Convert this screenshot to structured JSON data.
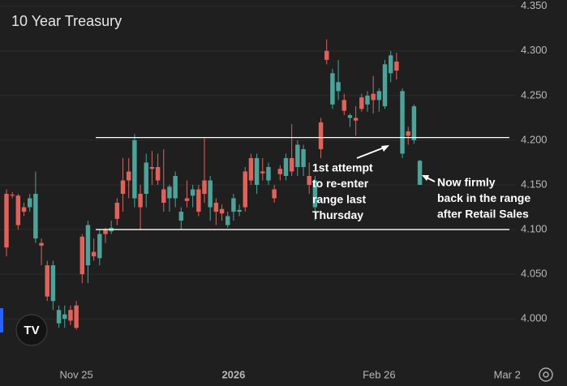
{
  "chart_data": {
    "type": "candlestick",
    "title": "10 Year Treasury",
    "categories": [
      null,
      null,
      null,
      null,
      null,
      null,
      null,
      null,
      null,
      null,
      null,
      null,
      "Nov 25",
      null,
      null,
      null,
      null,
      null,
      null,
      null,
      null,
      null,
      null,
      null,
      null,
      null,
      null,
      null,
      null,
      null,
      null,
      null,
      null,
      null,
      null,
      null,
      null,
      null,
      null,
      "2026",
      null,
      null,
      null,
      null,
      null,
      null,
      null,
      null,
      null,
      null,
      null,
      null,
      null,
      null,
      null,
      null,
      null,
      null,
      null,
      null,
      null,
      null,
      null,
      null,
      "Feb 26",
      null,
      null,
      null,
      null,
      null,
      null,
      null,
      null,
      null,
      null,
      null,
      null,
      null,
      null,
      null,
      null,
      null,
      null,
      null,
      null,
      null,
      "Mar 2",
      null
    ],
    "open": [
      4.14,
      4.139,
      4.138,
      4.125,
      4.125,
      4.09,
      4.085,
      4.06,
      4.02,
      3.995,
      4.0,
      4.01,
      4.015,
      4.092,
      4.06,
      4.075,
      4.068,
      4.1,
      4.098,
      4.13,
      4.155,
      4.165,
      4.135,
      4.14,
      4.14,
      4.17,
      4.17,
      4.145,
      4.135,
      4.135,
      4.11,
      4.135,
      4.138,
      4.145,
      4.155,
      4.125,
      4.13,
      4.123,
      4.105,
      4.12,
      4.12,
      4.165,
      4.18,
      4.15,
      4.165,
      4.155,
      4.145,
      4.168,
      4.16,
      4.18,
      4.17,
      4.17,
      4.16,
      4.125,
      4.22,
      4.3,
      4.24,
      4.255,
      4.245,
      4.225,
      4.225,
      4.248,
      4.24,
      4.252,
      4.245,
      4.238,
      4.275,
      4.288,
      4.185,
      4.21,
      4.2,
      4.15,
      null,
      null,
      null,
      null,
      null,
      null,
      null,
      null,
      null,
      null,
      null,
      null,
      null,
      null,
      null,
      null
    ],
    "high": [
      4.145,
      4.142,
      4.14,
      4.13,
      4.14,
      4.165,
      4.09,
      4.065,
      4.065,
      4.015,
      4.015,
      4.015,
      4.02,
      4.095,
      4.11,
      4.09,
      4.1,
      4.102,
      4.11,
      4.135,
      4.18,
      4.18,
      4.207,
      4.15,
      4.185,
      4.188,
      4.185,
      4.19,
      4.15,
      4.165,
      4.125,
      4.155,
      4.15,
      4.15,
      4.202,
      4.16,
      4.135,
      4.128,
      4.12,
      4.14,
      4.128,
      4.17,
      4.185,
      4.185,
      4.18,
      4.175,
      4.15,
      4.172,
      4.185,
      4.218,
      4.2,
      4.195,
      4.175,
      4.16,
      4.225,
      4.313,
      4.28,
      4.29,
      4.252,
      4.23,
      4.238,
      4.252,
      4.255,
      4.272,
      4.258,
      4.29,
      4.3,
      4.298,
      4.258,
      4.215,
      4.24,
      4.178,
      null,
      null,
      null,
      null,
      null,
      null,
      null,
      null,
      null,
      null,
      null,
      null,
      null,
      null,
      null,
      null
    ],
    "low": [
      4.07,
      4.135,
      4.1,
      4.115,
      4.12,
      4.085,
      4.06,
      4.02,
      4.01,
      3.99,
      3.99,
      3.993,
      3.988,
      4.04,
      4.04,
      4.065,
      4.06,
      4.085,
      4.095,
      4.105,
      4.12,
      4.135,
      4.125,
      4.1,
      4.125,
      4.15,
      4.15,
      4.12,
      4.12,
      4.125,
      4.1,
      4.125,
      4.125,
      4.115,
      4.13,
      4.11,
      4.105,
      4.11,
      4.102,
      4.11,
      4.115,
      4.12,
      4.15,
      4.14,
      4.155,
      4.15,
      4.13,
      4.155,
      4.155,
      4.16,
      4.16,
      4.16,
      4.14,
      4.11,
      4.18,
      4.285,
      4.235,
      4.245,
      4.228,
      4.215,
      4.205,
      4.232,
      4.232,
      4.23,
      4.232,
      4.235,
      4.265,
      4.268,
      4.18,
      4.195,
      4.196,
      4.15,
      null,
      null,
      null,
      null,
      null,
      null,
      null,
      null,
      null,
      null,
      null,
      null,
      null,
      null,
      null,
      null
    ],
    "close": [
      4.08,
      4.138,
      4.105,
      4.12,
      4.135,
      4.14,
      4.082,
      4.025,
      4.06,
      4.01,
      4.005,
      3.998,
      3.99,
      4.05,
      4.105,
      4.07,
      4.095,
      4.095,
      4.102,
      4.112,
      4.14,
      4.155,
      4.2,
      4.125,
      4.175,
      4.168,
      4.155,
      4.13,
      4.148,
      4.16,
      4.12,
      4.132,
      4.145,
      4.12,
      4.14,
      4.155,
      4.12,
      4.118,
      4.115,
      4.135,
      4.122,
      4.125,
      4.155,
      4.18,
      4.163,
      4.17,
      4.135,
      4.162,
      4.18,
      4.165,
      4.195,
      4.19,
      4.15,
      4.155,
      4.19,
      4.29,
      4.275,
      4.265,
      4.233,
      4.228,
      4.222,
      4.235,
      4.25,
      4.245,
      4.255,
      4.285,
      4.295,
      4.278,
      4.255,
      4.205,
      4.238,
      4.177,
      null,
      null,
      null,
      null,
      null,
      null,
      null,
      null,
      null,
      null,
      null,
      null,
      null,
      null,
      null,
      null
    ],
    "up_color": "#4da399",
    "down_color": "#e0625b",
    "ylim": [
      3.953,
      4.357
    ],
    "yticks": [
      {
        "value": 4.0,
        "label": "4.000"
      },
      {
        "value": 4.05,
        "label": "4.050"
      },
      {
        "value": 4.1,
        "label": "4.100"
      },
      {
        "value": 4.15,
        "label": "4.150"
      },
      {
        "value": 4.2,
        "label": "4.200"
      },
      {
        "value": 4.25,
        "label": "4.250"
      },
      {
        "value": 4.3,
        "label": "4.300"
      },
      {
        "value": 4.35,
        "label": "4.350"
      }
    ],
    "grid": true,
    "hlines": [
      4.203,
      4.1
    ],
    "annotations": [
      {
        "lines": [
          "1st attempt",
          "to re-enter",
          "range last",
          "Thursday"
        ]
      },
      {
        "lines": [
          "Now firmly",
          "back in the range",
          "after Retail Sales"
        ]
      }
    ]
  }
}
